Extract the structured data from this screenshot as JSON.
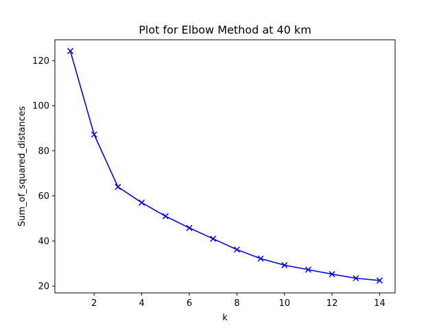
{
  "chart_data": {
    "type": "line",
    "title": "Plot for Elbow Method at 40 km",
    "xlabel": "k",
    "ylabel": "Sum_of_squared_distances",
    "x": [
      1,
      2,
      3,
      4,
      5,
      6,
      7,
      8,
      9,
      10,
      11,
      12,
      13,
      14
    ],
    "series": [
      {
        "values": [
          124.2,
          87.2,
          64.0,
          57.0,
          51.0,
          45.8,
          41.0,
          36.2,
          32.2,
          29.3,
          27.3,
          25.3,
          23.5,
          22.5
        ],
        "color": "#0000ff",
        "marker": "x",
        "line_style": "solid"
      }
    ],
    "xlim": [
      0.35,
      14.65
    ],
    "ylim": [
      17.0,
      129.2
    ],
    "xticks": [
      2,
      4,
      6,
      8,
      10,
      12,
      14
    ],
    "yticks": [
      20,
      40,
      60,
      80,
      100,
      120
    ],
    "grid": false
  }
}
